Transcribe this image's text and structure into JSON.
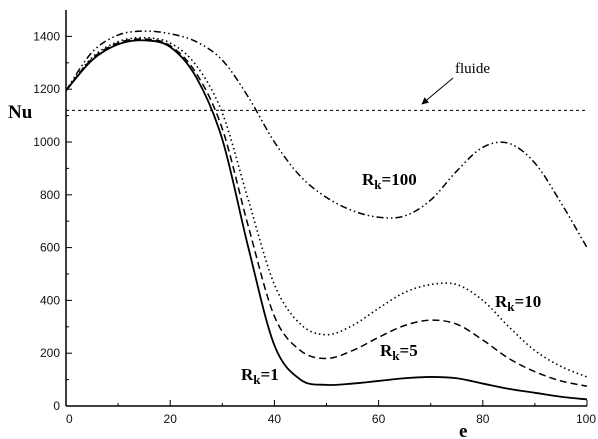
{
  "chart_data": {
    "type": "line",
    "title": "",
    "xlabel": "e",
    "ylabel": "Nu",
    "xlim": [
      0,
      100
    ],
    "ylim": [
      0,
      1500
    ],
    "xticks": [
      "0",
      "20",
      "40",
      "60",
      "80",
      "100"
    ],
    "yticks": [
      "0",
      "200",
      "400",
      "600",
      "800",
      "1000",
      "1200",
      "1400"
    ],
    "grid": false,
    "reference_line": {
      "label": "fluide",
      "y": 1120
    },
    "series": [
      {
        "name": "R",
        "subscript": "k",
        "suffix": "=1",
        "style": "solid",
        "x": [
          0,
          5,
          10,
          15,
          20,
          25,
          30,
          35,
          40,
          45,
          50,
          55,
          60,
          65,
          70,
          75,
          80,
          85,
          90,
          95,
          100
        ],
        "y": [
          1195,
          1310,
          1370,
          1385,
          1360,
          1245,
          1010,
          600,
          230,
          100,
          80,
          85,
          95,
          105,
          110,
          105,
          85,
          65,
          50,
          35,
          25
        ]
      },
      {
        "name": "R",
        "subscript": "k",
        "suffix": "=5",
        "style": "dashed",
        "x": [
          0,
          5,
          10,
          15,
          20,
          25,
          30,
          35,
          40,
          45,
          50,
          55,
          60,
          65,
          70,
          75,
          80,
          85,
          90,
          95,
          100
        ],
        "y": [
          1195,
          1315,
          1375,
          1390,
          1365,
          1260,
          1050,
          680,
          340,
          210,
          180,
          210,
          260,
          305,
          325,
          310,
          250,
          180,
          130,
          95,
          75
        ]
      },
      {
        "name": "R",
        "subscript": "k",
        "suffix": "=10",
        "style": "dotted",
        "x": [
          0,
          5,
          10,
          15,
          20,
          25,
          30,
          35,
          40,
          45,
          50,
          55,
          60,
          65,
          70,
          75,
          80,
          85,
          90,
          95,
          100
        ],
        "y": [
          1195,
          1320,
          1380,
          1395,
          1375,
          1290,
          1110,
          780,
          460,
          310,
          270,
          305,
          370,
          430,
          460,
          460,
          400,
          300,
          210,
          150,
          110
        ]
      },
      {
        "name": "R",
        "subscript": "k",
        "suffix": "=100",
        "style": "dashdotdot",
        "x": [
          0,
          5,
          10,
          15,
          20,
          25,
          30,
          35,
          40,
          45,
          50,
          55,
          60,
          65,
          70,
          75,
          80,
          85,
          90,
          95,
          100
        ],
        "y": [
          1195,
          1340,
          1405,
          1420,
          1410,
          1380,
          1310,
          1170,
          1000,
          870,
          790,
          740,
          715,
          720,
          780,
          890,
          980,
          995,
          920,
          770,
          600
        ]
      }
    ]
  }
}
